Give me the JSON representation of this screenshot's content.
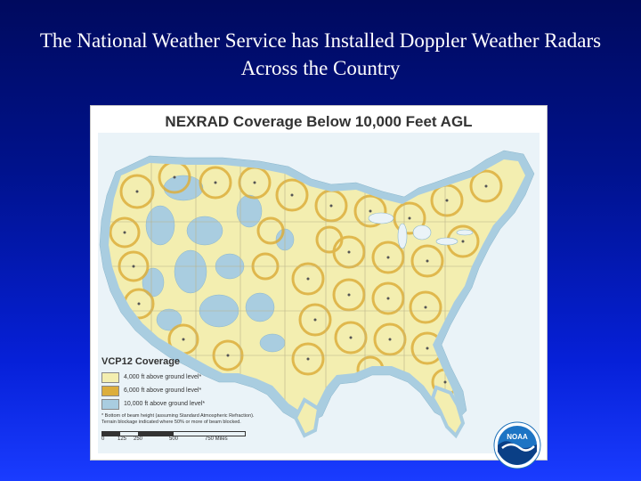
{
  "slide": {
    "title": "The National Weather Service has Installed Doppler Weather Radars Across the Country"
  },
  "map": {
    "title": "NEXRAD Coverage Below 10,000 Feet AGL",
    "colors": {
      "coverage_4000": "#f3eeb0",
      "coverage_6000": "#dcae3c",
      "coverage_10000": "#a9cde0",
      "panel_background": "#ffffff",
      "ocean": "#eaf3f8"
    },
    "legend": {
      "title": "VCP12 Coverage",
      "items": [
        {
          "label": "4,000 ft above ground level*",
          "color": "#f3eeb0"
        },
        {
          "label": "6,000 ft above ground level*",
          "color": "#dcae3c"
        },
        {
          "label": "10,000 ft above ground level*",
          "color": "#a9cde0"
        }
      ],
      "note_line1": "* Bottom of beam height (assuming Standard Atmospheric Refraction).",
      "note_line2": "Terrain blockage indicated where 50% or more of beam blocked."
    },
    "scale": {
      "labels": [
        "0",
        "125",
        "250",
        "500",
        "750 Miles"
      ]
    },
    "logo": {
      "text": "NOAA",
      "icon": "noaa-logo-icon"
    }
  }
}
